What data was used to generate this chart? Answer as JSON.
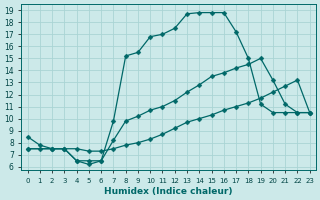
{
  "xlabel": "Humidex (Indice chaleur)",
  "background_color": "#cce9e9",
  "grid_color": "#aad4d4",
  "line_color": "#006868",
  "xlim": [
    -0.5,
    23.5
  ],
  "ylim": [
    5.7,
    19.5
  ],
  "yticks": [
    6,
    7,
    8,
    9,
    10,
    11,
    12,
    13,
    14,
    15,
    16,
    17,
    18,
    19
  ],
  "xticks": [
    0,
    1,
    2,
    3,
    4,
    5,
    6,
    7,
    8,
    9,
    10,
    11,
    12,
    13,
    14,
    15,
    16,
    17,
    18,
    19,
    20,
    21,
    22,
    23
  ],
  "curve1_x": [
    0,
    1,
    2,
    3,
    4,
    5,
    6,
    7,
    8,
    9,
    10,
    11,
    12,
    13,
    14,
    15,
    16,
    17,
    18,
    19,
    20,
    21,
    22,
    23
  ],
  "curve1_y": [
    8.5,
    7.8,
    7.5,
    7.5,
    6.5,
    6.2,
    6.5,
    9.8,
    15.2,
    15.5,
    16.8,
    17.0,
    17.5,
    18.7,
    18.8,
    18.8,
    18.8,
    17.2,
    15.0,
    11.2,
    10.5,
    10.5,
    10.5,
    10.5
  ],
  "curve2_x": [
    0,
    1,
    2,
    3,
    4,
    5,
    6,
    7,
    8,
    9,
    10,
    11,
    12,
    13,
    14,
    15,
    16,
    17,
    18,
    19,
    20,
    21,
    22,
    23
  ],
  "curve2_y": [
    7.5,
    7.5,
    7.5,
    7.5,
    7.5,
    7.3,
    7.3,
    7.5,
    7.8,
    8.0,
    8.3,
    8.7,
    9.2,
    9.7,
    10.0,
    10.3,
    10.7,
    11.0,
    11.3,
    11.7,
    12.2,
    12.7,
    13.2,
    10.5
  ],
  "curve3_x": [
    0,
    2,
    3,
    4,
    5,
    6,
    7,
    8,
    9,
    10,
    11,
    12,
    13,
    14,
    15,
    16,
    17,
    18,
    19,
    20,
    21,
    22,
    23
  ],
  "curve3_y": [
    7.5,
    7.5,
    7.5,
    6.5,
    6.5,
    6.5,
    8.2,
    9.8,
    10.2,
    10.7,
    11.0,
    11.5,
    12.2,
    12.8,
    13.5,
    13.8,
    14.2,
    14.5,
    15.0,
    13.2,
    11.2,
    10.5,
    10.5
  ]
}
